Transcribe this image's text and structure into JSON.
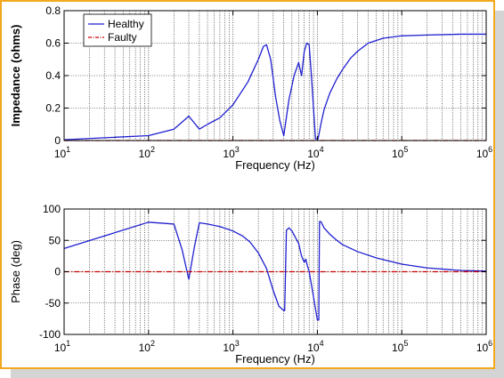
{
  "chart_data": [
    {
      "type": "line",
      "title": "",
      "xlabel": "Frequency (Hz)",
      "ylabel": "Impedance (ohms)",
      "xscale": "log",
      "xlim": [
        10,
        1000000
      ],
      "ylim": [
        0,
        0.8
      ],
      "grid": true,
      "xticks": [
        {
          "base": "10",
          "exp": "1"
        },
        {
          "base": "10",
          "exp": "2"
        },
        {
          "base": "10",
          "exp": "3"
        },
        {
          "base": "10",
          "exp": "4"
        },
        {
          "base": "10",
          "exp": "5"
        },
        {
          "base": "10",
          "exp": "6"
        }
      ],
      "yticks": [
        "0",
        "0.2",
        "0.4",
        "0.6",
        "0.8"
      ],
      "legend": {
        "position": "top-left",
        "entries": [
          "Healthy",
          "Faulty"
        ]
      },
      "series": [
        {
          "name": "Healthy",
          "color": "#1f1fd0",
          "style": "solid",
          "x": [
            10,
            100,
            200,
            300,
            400,
            500,
            700,
            1000,
            1500,
            2000,
            2300,
            2500,
            2800,
            3200,
            3600,
            4000,
            4600,
            5300,
            6000,
            6500,
            7000,
            7500,
            8000,
            8500,
            9000,
            9500,
            10200,
            11000,
            12000,
            14000,
            17000,
            20000,
            25000,
            30000,
            40000,
            60000,
            100000,
            200000,
            500000,
            1000000
          ],
          "y": [
            0.005,
            0.03,
            0.07,
            0.15,
            0.07,
            0.1,
            0.14,
            0.22,
            0.36,
            0.5,
            0.58,
            0.59,
            0.5,
            0.27,
            0.12,
            0.03,
            0.25,
            0.4,
            0.48,
            0.4,
            0.55,
            0.6,
            0.59,
            0.4,
            0.2,
            0.01,
            0.01,
            0.1,
            0.19,
            0.29,
            0.38,
            0.44,
            0.51,
            0.55,
            0.6,
            0.63,
            0.645,
            0.65,
            0.655,
            0.655
          ]
        },
        {
          "name": "Faulty",
          "color": "#cc0000",
          "style": "dashdot",
          "x": [
            10,
            1000000
          ],
          "y": [
            0,
            0
          ]
        }
      ]
    },
    {
      "type": "line",
      "title": "",
      "xlabel": "Frequency (Hz)",
      "ylabel": "Phase (deg)",
      "xscale": "log",
      "xlim": [
        10,
        1000000
      ],
      "ylim": [
        -100,
        100
      ],
      "grid": true,
      "xticks": [
        {
          "base": "10",
          "exp": "1"
        },
        {
          "base": "10",
          "exp": "2"
        },
        {
          "base": "10",
          "exp": "3"
        },
        {
          "base": "10",
          "exp": "4"
        },
        {
          "base": "10",
          "exp": "5"
        },
        {
          "base": "10",
          "exp": "6"
        }
      ],
      "yticks": [
        "-100",
        "-50",
        "0",
        "50",
        "100"
      ],
      "series": [
        {
          "name": "Healthy",
          "color": "#1f1fd0",
          "style": "solid",
          "x": [
            10,
            100,
            200,
            250,
            300,
            350,
            400,
            500,
            700,
            1000,
            1300,
            1600,
            2000,
            2500,
            3000,
            3500,
            4000,
            4100,
            4300,
            4600,
            5000,
            6000,
            6500,
            7000,
            7300,
            7600,
            8000,
            9000,
            10000,
            10400,
            10600,
            11000,
            12000,
            14000,
            17000,
            20000,
            30000,
            50000,
            100000,
            200000,
            500000,
            1000000
          ],
          "y": [
            37,
            79,
            76,
            35,
            -12,
            40,
            78,
            76,
            72,
            65,
            57,
            47,
            30,
            5,
            -30,
            -55,
            -62,
            -62,
            66,
            70,
            65,
            45,
            25,
            15,
            20,
            10,
            0,
            -40,
            -77,
            -77,
            80,
            80,
            70,
            60,
            50,
            43,
            32,
            22,
            12,
            6,
            2,
            1
          ]
        },
        {
          "name": "Faulty",
          "color": "#cc0000",
          "style": "dashdot",
          "x": [
            10,
            1000000
          ],
          "y": [
            0,
            0
          ]
        }
      ]
    }
  ]
}
